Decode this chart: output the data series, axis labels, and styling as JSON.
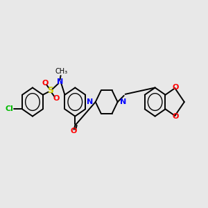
{
  "background_color": "#e8e8e8",
  "bond_color": "#000000",
  "cl_color": "#00bb00",
  "s_color": "#cccc00",
  "n_color": "#0000ff",
  "o_color": "#ff0000",
  "line_width": 1.4,
  "font_size": 8,
  "figsize": [
    3.0,
    3.0
  ],
  "dpi": 100,
  "xlim": [
    0,
    12
  ],
  "ylim": [
    0,
    10
  ]
}
